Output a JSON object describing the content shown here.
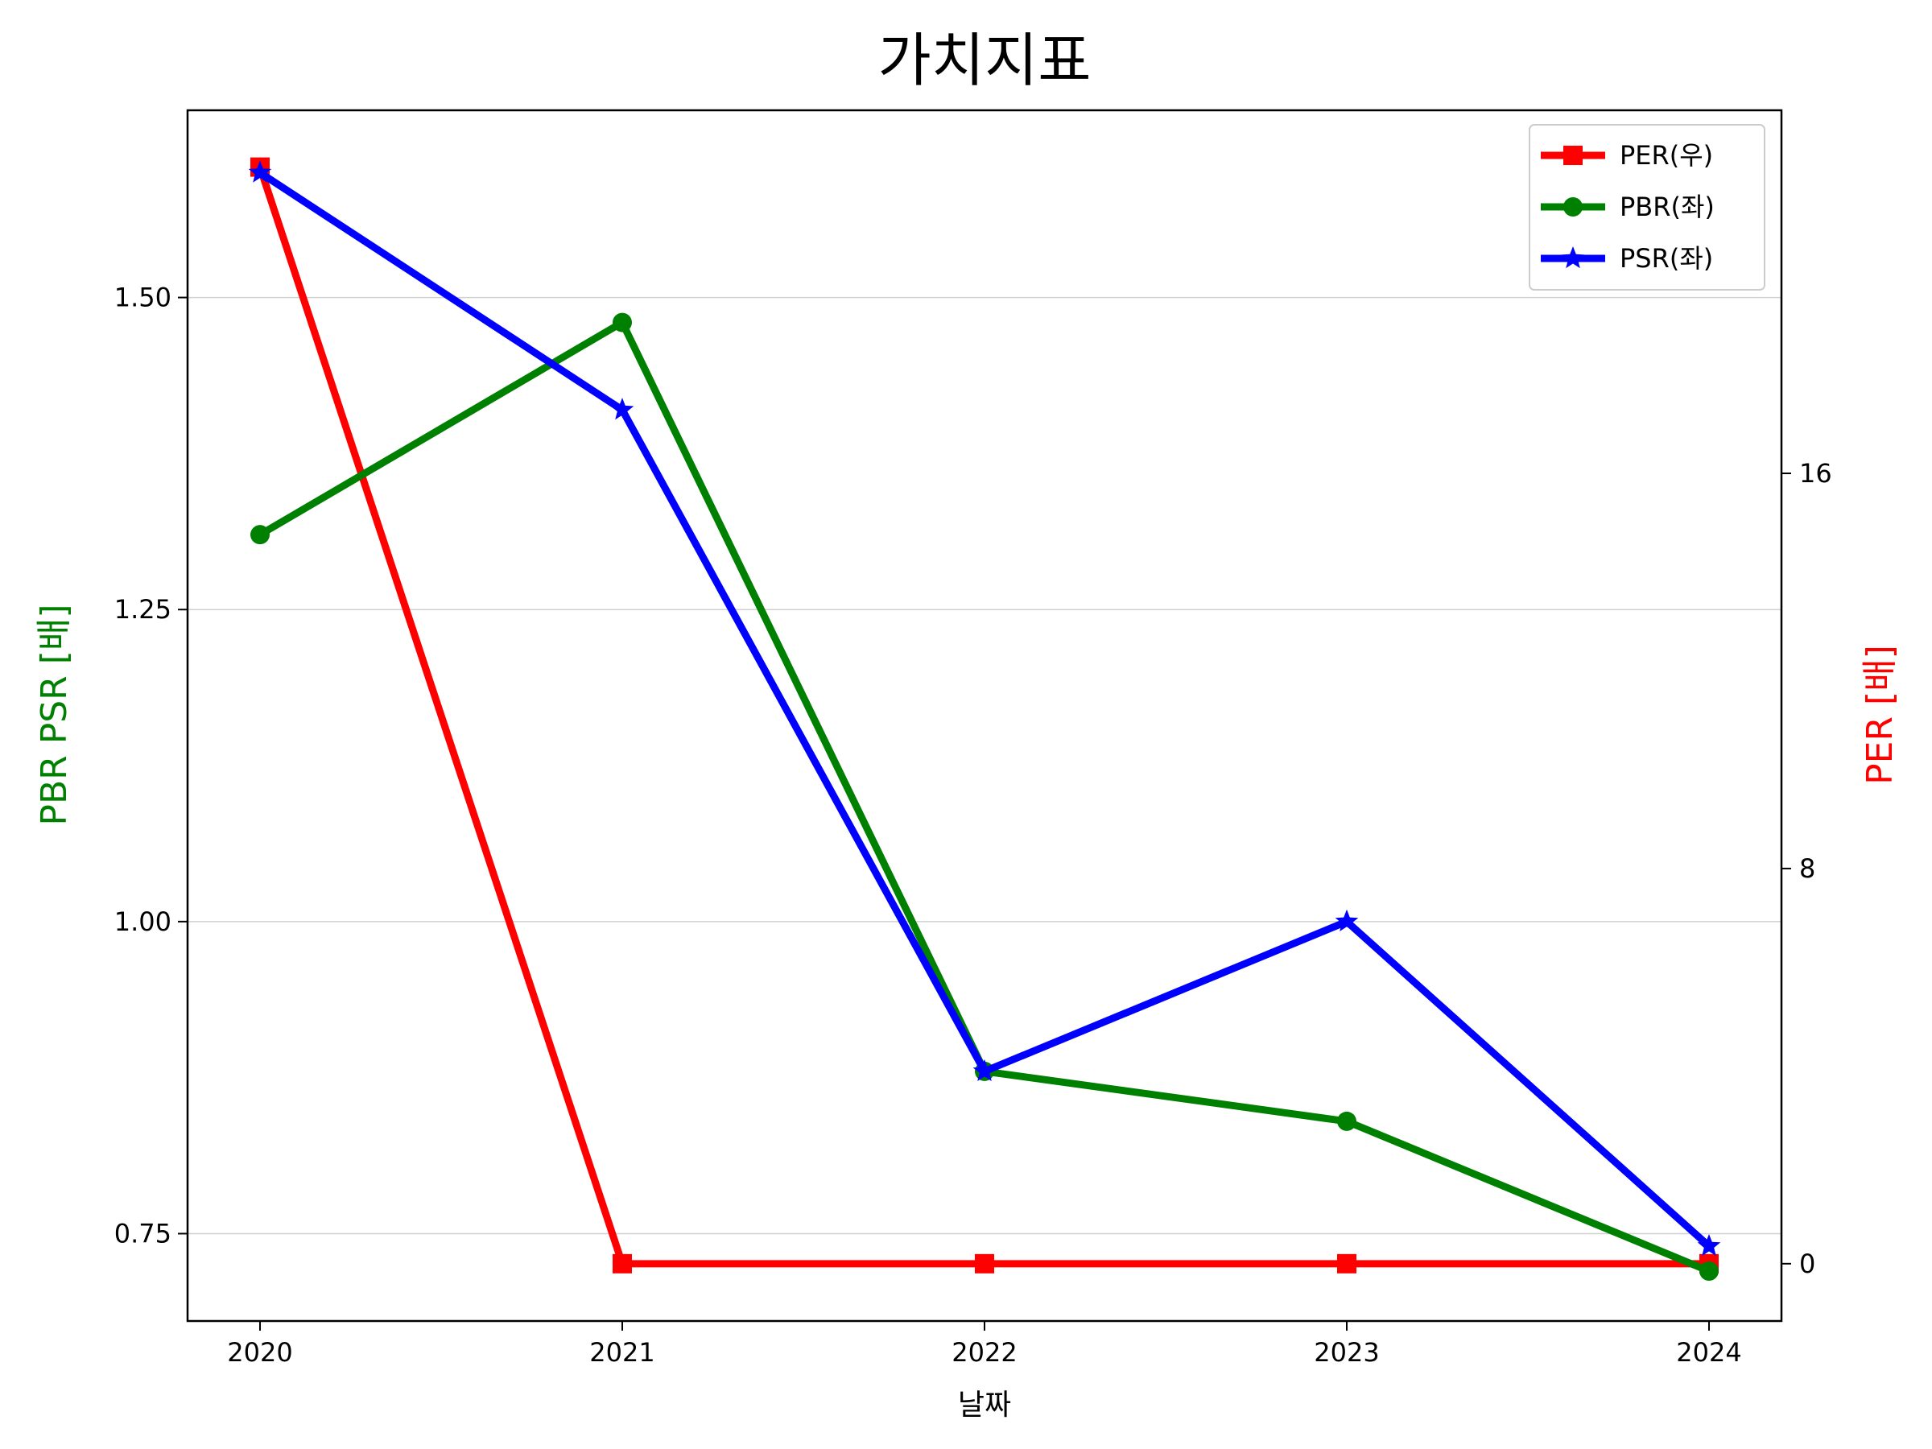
{
  "chart_data": {
    "type": "line",
    "title": "가치지표",
    "xlabel": "날짜",
    "ylabel_left": "PBR PSR [배]",
    "ylabel_right": "PER [배]",
    "x": [
      "2020",
      "2021",
      "2022",
      "2023",
      "2024"
    ],
    "ylim_left": [
      0.68,
      1.65
    ],
    "yticks_left": [
      "0.75",
      "1.00",
      "1.25",
      "1.50"
    ],
    "ylim_right": [
      -1.16,
      23.35
    ],
    "yticks_right": [
      "0",
      "8",
      "16"
    ],
    "grid": "horizontal",
    "legend_position": "top-right",
    "series": [
      {
        "name": "PER(우)",
        "axis": "right",
        "color": "#ff0000",
        "marker": "square",
        "values": [
          22.2,
          0,
          0,
          0,
          0
        ]
      },
      {
        "name": "PBR(좌)",
        "axis": "left",
        "color": "#008000",
        "marker": "circle",
        "values": [
          1.31,
          1.48,
          0.88,
          0.84,
          0.72
        ]
      },
      {
        "name": "PSR(좌)",
        "axis": "left",
        "color": "#0000ff",
        "marker": "star",
        "values": [
          1.6,
          1.41,
          0.88,
          1.0,
          0.74
        ]
      }
    ]
  }
}
